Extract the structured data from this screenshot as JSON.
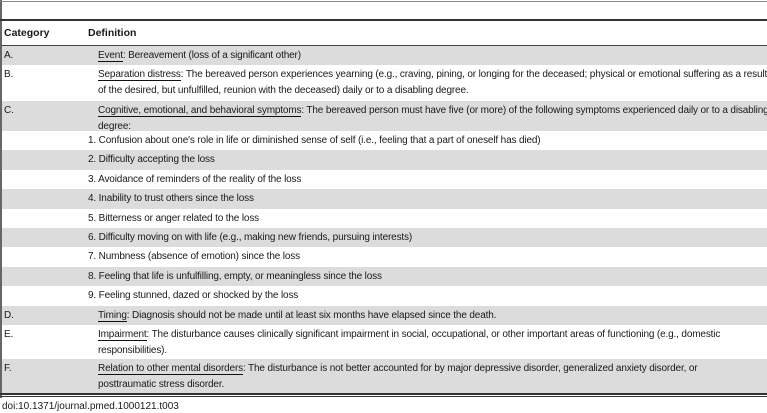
{
  "header": {
    "category": "Category",
    "definition": "Definition"
  },
  "rows": [
    {
      "cat": "A.",
      "term": "Event",
      "text": ": Bereavement (loss of a significant other)"
    },
    {
      "cat": "B.",
      "term": "Separation distress",
      "text": ": The bereaved person experiences yearning (e.g., craving, pining, or longing for the deceased; physical or emotional suffering as a result of the desired, but unfulfilled, reunion with the deceased) daily or to a disabling degree."
    },
    {
      "cat": "C.",
      "term": "Cognitive, emotional, and behavioral symptoms",
      "text": ": The bereaved person must have five (or more) of the following symptoms experienced daily or to a disabling degree:"
    }
  ],
  "items": [
    "1. Confusion about one's role in life or diminished sense of self (i.e., feeling that a part of oneself has died)",
    "2. Difficulty accepting the loss",
    "3. Avoidance of reminders of the reality of the loss",
    "4. Inability to trust others since the loss",
    "5. Bitterness or anger related to the loss",
    "6. Difficulty moving on with life (e.g., making new friends, pursuing interests)",
    "7. Numbness (absence of emotion) since the loss",
    "8. Feeling that life is unfulfilling, empty, or meaningless since the loss",
    "9. Feeling stunned, dazed or shocked by the loss"
  ],
  "rows2": [
    {
      "cat": "D.",
      "term": "Timing",
      "text": ": Diagnosis should not be made until at least six months have elapsed since the death."
    },
    {
      "cat": "E.",
      "term": "Impairment",
      "text": ": The disturbance causes clinically significant impairment in social, occupational, or other important areas of functioning (e.g., domestic responsibilities)."
    },
    {
      "cat": "F.",
      "term": "Relation to other mental disorders",
      "text": ": The disturbance is not better accounted for by major depressive disorder, generalized anxiety disorder, or posttraumatic stress disorder."
    }
  ],
  "doi": "doi:10.1371/journal.pmed.1000121.t003"
}
